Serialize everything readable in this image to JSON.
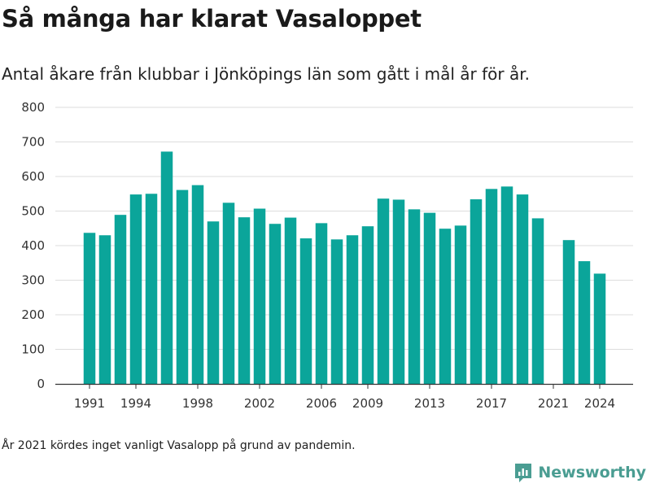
{
  "title": "Så många har klarat Vasaloppet",
  "subtitle": "Antal åkare från klubbar i Jönköpings län som gått i mål år för år.",
  "note": "År 2021 kördes inget vanligt Vasalopp på grund av pandemin.",
  "brand": "Newsworthy",
  "colors": {
    "bar": "#0ba59a",
    "grid": "#dddddd",
    "axis": "#333333",
    "brand": "#4a9d92"
  },
  "chart_data": {
    "type": "bar",
    "title": "Så många har klarat Vasaloppet",
    "xlabel": "",
    "ylabel": "",
    "ylim": [
      0,
      800
    ],
    "yticks": [
      0,
      100,
      200,
      300,
      400,
      500,
      600,
      700,
      800
    ],
    "xticks": [
      1991,
      1994,
      1998,
      2002,
      2006,
      2009,
      2013,
      2017,
      2021,
      2024
    ],
    "grid": true,
    "categories": [
      1991,
      1992,
      1993,
      1994,
      1995,
      1996,
      1997,
      1998,
      1999,
      2000,
      2001,
      2002,
      2003,
      2004,
      2005,
      2006,
      2007,
      2008,
      2009,
      2010,
      2011,
      2012,
      2013,
      2014,
      2015,
      2016,
      2017,
      2018,
      2019,
      2020,
      2021,
      2022,
      2023,
      2024
    ],
    "values": [
      437,
      430,
      489,
      548,
      550,
      672,
      561,
      575,
      470,
      524,
      482,
      507,
      463,
      481,
      421,
      465,
      418,
      430,
      456,
      536,
      533,
      505,
      495,
      449,
      458,
      534,
      564,
      571,
      548,
      479,
      0,
      416,
      355,
      319
    ]
  }
}
